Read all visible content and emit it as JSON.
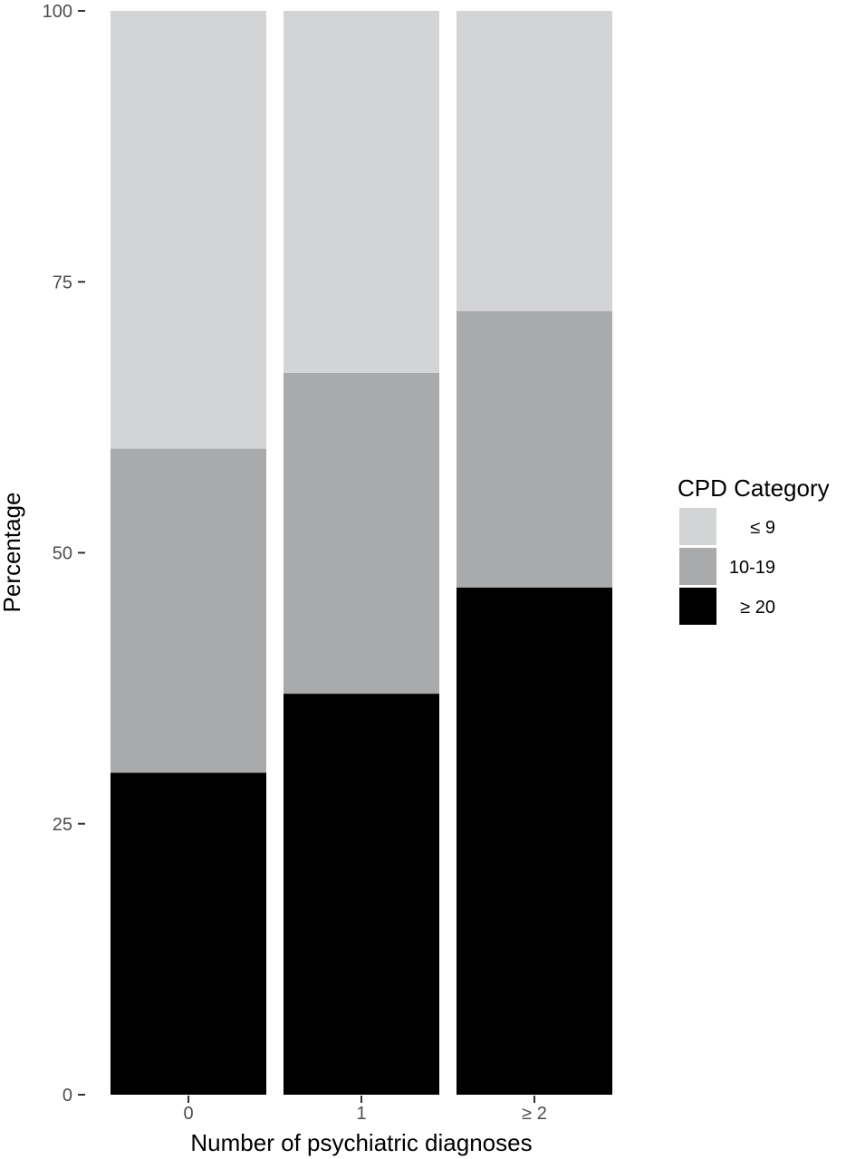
{
  "chart_data": {
    "type": "bar",
    "stacked": true,
    "categories": [
      "0",
      "1",
      "≥ 2"
    ],
    "series": [
      {
        "name": "≥ 20",
        "color": "#000000",
        "values": [
          29.7,
          37.0,
          46.8
        ]
      },
      {
        "name": "10-19",
        "color": "#a9aaac",
        "values": [
          29.9,
          29.6,
          25.5
        ]
      },
      {
        "name": "≤ 9",
        "color": "#d3d4d6",
        "values": [
          40.4,
          33.4,
          27.7
        ]
      }
    ],
    "xlabel": "Number of psychiatric diagnoses",
    "ylabel": "Percentage",
    "ylim": [
      0,
      100
    ],
    "yticks": [
      "0",
      "25",
      "50",
      "75",
      "100"
    ],
    "grid": false,
    "legend": {
      "title": "CPD Category",
      "placement": "right",
      "entries": [
        "≤ 9",
        "10-19",
        "≥ 20"
      ]
    }
  }
}
